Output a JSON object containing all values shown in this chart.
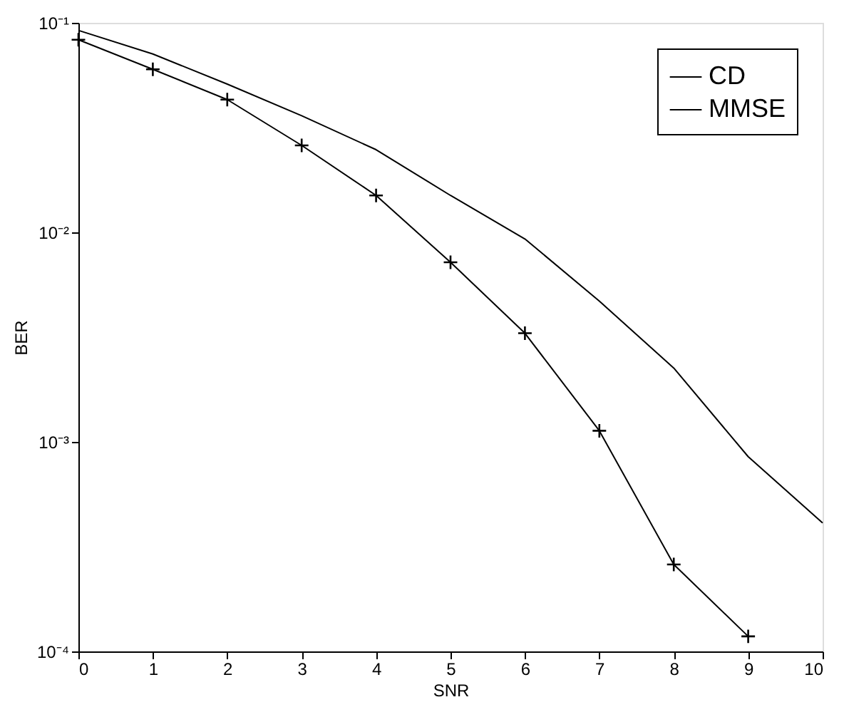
{
  "chart_data": {
    "type": "line",
    "xlabel": "SNR",
    "ylabel": "BER",
    "x": [
      0,
      1,
      2,
      3,
      4,
      5,
      6,
      7,
      8,
      9,
      10
    ],
    "series": [
      {
        "name": "CD",
        "color": "#000000",
        "marker": "none",
        "values": [
          0.092,
          0.071,
          0.051,
          0.036,
          0.0248,
          0.015,
          0.0093,
          0.0047,
          0.00225,
          0.00085,
          0.00041
        ]
      },
      {
        "name": "MMSE",
        "color": "#000000",
        "marker": "cross",
        "values": [
          0.083,
          0.06,
          0.043,
          0.026,
          0.015,
          0.0072,
          0.0033,
          0.00113,
          0.00026,
          0.000118,
          null
        ]
      }
    ],
    "log": "y",
    "xlim": [
      0,
      10
    ],
    "xticks": [
      0,
      1,
      2,
      3,
      4,
      5,
      6,
      7,
      8,
      9,
      10
    ],
    "ylim": [
      0.0001,
      0.1
    ],
    "yticks": [
      {
        "value": 0.0001,
        "label": "10⁻⁴"
      },
      {
        "value": 0.001,
        "label": "10⁻³"
      },
      {
        "value": 0.01,
        "label": "10⁻²"
      },
      {
        "value": 0.1,
        "label": "10⁻¹"
      }
    ],
    "grid": false,
    "legend": "top right",
    "line_style": "solid"
  }
}
